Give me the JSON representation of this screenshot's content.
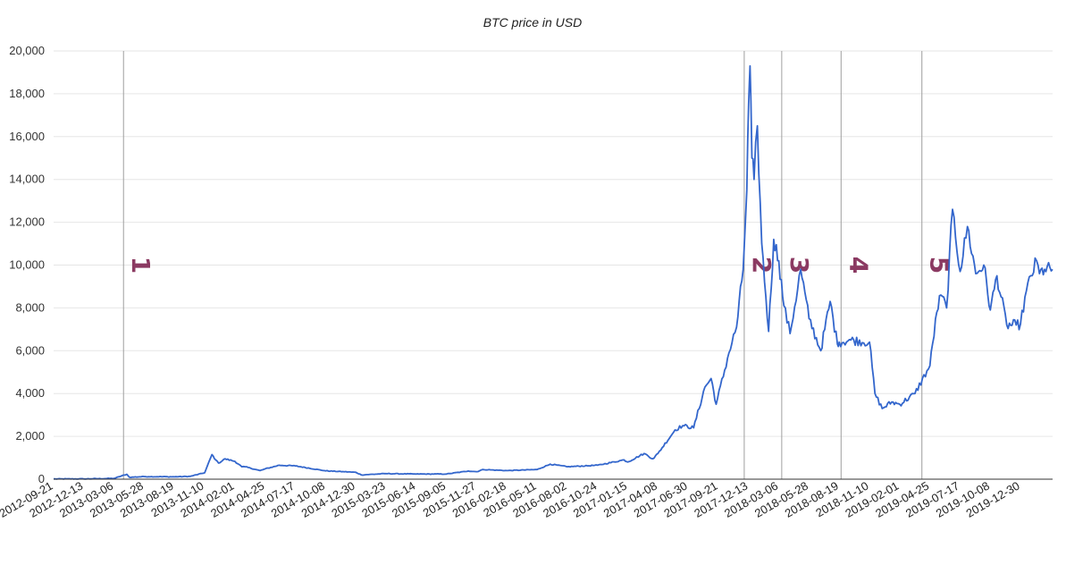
{
  "chart_data": {
    "type": "line",
    "title": "BTC price in USD",
    "xlabel": "",
    "ylabel": "",
    "ylim": [
      0,
      20000
    ],
    "yticks": [
      "0",
      "2,000",
      "4,000",
      "6,000",
      "8,000",
      "10,000",
      "12,000",
      "14,000",
      "16,000",
      "18,000",
      "20,000"
    ],
    "xlim": [
      "2012-09-21",
      "2020-03-27"
    ],
    "xticks": [
      "2012-09-21",
      "2012-12-13",
      "2013-03-06",
      "2013-05-28",
      "2013-08-19",
      "2013-11-10",
      "2014-02-01",
      "2014-04-25",
      "2014-07-17",
      "2014-10-08",
      "2014-12-30",
      "2015-03-23",
      "2015-06-14",
      "2015-09-05",
      "2015-11-27",
      "2016-02-18",
      "2016-05-11",
      "2016-08-02",
      "2016-10-24",
      "2017-01-15",
      "2017-04-08",
      "2017-06-30",
      "2017-09-21",
      "2017-12-13",
      "2018-03-06",
      "2018-05-28",
      "2018-08-19",
      "2018-11-10",
      "2019-02-01",
      "2019-04-25",
      "2019-07-17",
      "2019-10-08",
      "2019-12-30"
    ],
    "grid": true,
    "legend": "none",
    "series": [
      {
        "color": "#3366cc",
        "x": [
          "2012-09-21",
          "2012-12-13",
          "2013-03-06",
          "2013-04-10",
          "2013-04-17",
          "2013-05-28",
          "2013-08-19",
          "2013-10-01",
          "2013-11-10",
          "2013-11-30",
          "2013-12-10",
          "2013-12-18",
          "2014-01-05",
          "2014-02-01",
          "2014-02-20",
          "2014-03-01",
          "2014-04-11",
          "2014-04-25",
          "2014-06-03",
          "2014-07-17",
          "2014-10-08",
          "2014-12-30",
          "2015-01-14",
          "2015-03-23",
          "2015-06-14",
          "2015-09-05",
          "2015-11-04",
          "2015-11-27",
          "2015-12-15",
          "2016-02-18",
          "2016-05-11",
          "2016-06-16",
          "2016-08-02",
          "2016-10-24",
          "2017-01-05",
          "2017-01-15",
          "2017-03-01",
          "2017-03-25",
          "2017-04-08",
          "2017-05-25",
          "2017-06-15",
          "2017-07-15",
          "2017-08-15",
          "2017-09-01",
          "2017-09-15",
          "2017-10-20",
          "2017-11-10",
          "2017-11-28",
          "2017-12-08",
          "2017-12-13",
          "2017-12-17",
          "2017-12-22",
          "2017-12-28",
          "2018-01-06",
          "2018-01-18",
          "2018-02-06",
          "2018-02-20",
          "2018-03-06",
          "2018-03-20",
          "2018-04-06",
          "2018-05-05",
          "2018-05-28",
          "2018-06-29",
          "2018-07-25",
          "2018-08-14",
          "2018-08-19",
          "2018-09-20",
          "2018-11-10",
          "2018-11-25",
          "2018-12-15",
          "2019-01-10",
          "2019-02-01",
          "2019-03-15",
          "2019-04-25",
          "2019-05-14",
          "2019-05-25",
          "2019-06-10",
          "2019-06-26",
          "2019-07-17",
          "2019-08-06",
          "2019-08-29",
          "2019-09-20",
          "2019-10-08",
          "2019-10-26",
          "2019-11-22",
          "2019-12-18",
          "2019-12-30",
          "2020-01-15",
          "2020-02-12",
          "2020-02-20",
          "2020-03-05",
          "2020-03-27"
        ],
        "y": [
          12,
          13,
          35,
          230,
          90,
          120,
          110,
          130,
          300,
          1150,
          900,
          750,
          950,
          830,
          580,
          580,
          400,
          480,
          650,
          620,
          390,
          320,
          200,
          260,
          240,
          240,
          380,
          350,
          450,
          400,
          450,
          700,
          580,
          650,
          900,
          800,
          1200,
          950,
          1200,
          2300,
          2500,
          2400,
          4300,
          4700,
          3500,
          5900,
          7100,
          9800,
          13500,
          17500,
          19300,
          15000,
          14000,
          16500,
          11000,
          6900,
          11200,
          10200,
          8100,
          6800,
          9800,
          7500,
          6000,
          8300,
          6300,
          6400,
          6500,
          6400,
          4000,
          3300,
          3600,
          3500,
          4000,
          5300,
          7800,
          8600,
          8000,
          12600,
          9700,
          11800,
          9600,
          10000,
          7900,
          9500,
          7200,
          7200,
          7250,
          8800,
          10200,
          9600,
          9800,
          9800
        ]
      }
    ],
    "annotations": [
      {
        "label": "1",
        "date": "2013-04-01",
        "color": "#8b3a62"
      },
      {
        "label": "2",
        "date": "2017-12-01",
        "color": "#8b3a62"
      },
      {
        "label": "3",
        "date": "2018-03-14",
        "color": "#8b3a62"
      },
      {
        "label": "4",
        "date": "2018-08-24",
        "color": "#8b3a62"
      },
      {
        "label": "5",
        "date": "2019-04-03",
        "color": "#8b3a62"
      }
    ]
  },
  "colors": {
    "line": "#3366cc",
    "grid": "#e6e6e6",
    "axis": "#333333",
    "marker_line": "#9e9e9e",
    "marker_text": "#8b3a62"
  }
}
